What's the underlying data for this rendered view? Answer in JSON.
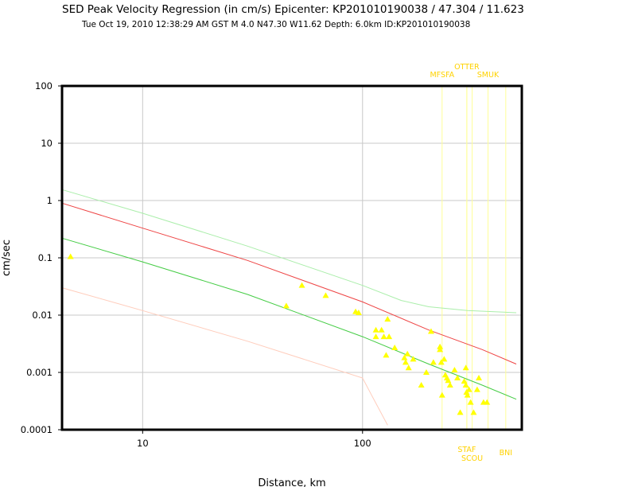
{
  "chart_data": {
    "type": "scatter",
    "title": "SED Peak Velocity Regression (in cm/s) Epicenter: KP201010190038 / 47.304 / 11.623",
    "subtitle": "Tue Oct 19, 2010 12:38:29 AM GST   M 4.0   N47.30 W11.62   Depth: 6.0km   ID:KP201010190038",
    "xlabel": "Distance, km",
    "ylabel": "cm/sec",
    "x_scale": "log",
    "y_scale": "log",
    "xlim": [
      4.3,
      530
    ],
    "ylim": [
      0.0001,
      100
    ],
    "x_ticks": [
      {
        "v": 10,
        "label": "10"
      },
      {
        "v": 100,
        "label": "100"
      }
    ],
    "y_ticks": [
      {
        "v": 100,
        "label": "100"
      },
      {
        "v": 10,
        "label": "10"
      },
      {
        "v": 1,
        "label": "1"
      },
      {
        "v": 0.1,
        "label": "0.1"
      },
      {
        "v": 0.01,
        "label": "0.01"
      },
      {
        "v": 0.001,
        "label": "0.001"
      },
      {
        "v": 0.0001,
        "label": "0.0001"
      }
    ],
    "grid": true,
    "series": [
      {
        "type": "points",
        "color": "#ffff00",
        "marker": "triangle",
        "points": [
          [
            4.7,
            0.105
          ],
          [
            45,
            0.0145
          ],
          [
            53,
            0.033
          ],
          [
            68,
            0.022
          ],
          [
            93,
            0.0115
          ],
          [
            96,
            0.011
          ],
          [
            115,
            0.0055
          ],
          [
            115,
            0.0042
          ],
          [
            122,
            0.0055
          ],
          [
            125,
            0.0042
          ],
          [
            130,
            0.0085
          ],
          [
            132,
            0.0042
          ],
          [
            128,
            0.002
          ],
          [
            140,
            0.0027
          ],
          [
            155,
            0.0018
          ],
          [
            157,
            0.0015
          ],
          [
            160,
            0.0021
          ],
          [
            162,
            0.0012
          ],
          [
            170,
            0.0017
          ],
          [
            185,
            0.0006
          ],
          [
            195,
            0.001
          ],
          [
            205,
            0.0052
          ],
          [
            210,
            0.0015
          ],
          [
            225,
            0.0028
          ],
          [
            225,
            0.0025
          ],
          [
            228,
            0.0015
          ],
          [
            230,
            0.0004
          ],
          [
            235,
            0.0017
          ],
          [
            238,
            0.0009
          ],
          [
            242,
            0.0008
          ],
          [
            245,
            0.00072
          ],
          [
            250,
            0.0006
          ],
          [
            262,
            0.0011
          ],
          [
            270,
            0.0008
          ],
          [
            278,
            0.0002
          ],
          [
            290,
            0.0007
          ],
          [
            295,
            0.0012
          ],
          [
            295,
            0.0006
          ],
          [
            297,
            0.00045
          ],
          [
            300,
            0.0004
          ],
          [
            305,
            0.0005
          ],
          [
            310,
            0.0003
          ],
          [
            320,
            0.0002
          ],
          [
            332,
            0.0005
          ],
          [
            338,
            0.0008
          ],
          [
            355,
            0.0003
          ],
          [
            368,
            0.0003
          ]
        ]
      },
      {
        "type": "line",
        "color": "#ee4444",
        "points": [
          [
            4.3,
            0.9
          ],
          [
            10,
            0.33
          ],
          [
            30,
            0.09
          ],
          [
            100,
            0.017
          ],
          [
            200,
            0.0055
          ],
          [
            350,
            0.0025
          ],
          [
            500,
            0.0014
          ]
        ]
      },
      {
        "type": "line",
        "color": "#44cc44",
        "points": [
          [
            4.3,
            0.22
          ],
          [
            10,
            0.085
          ],
          [
            30,
            0.023
          ],
          [
            100,
            0.0042
          ],
          [
            200,
            0.0014
          ],
          [
            350,
            0.0006
          ],
          [
            500,
            0.00034
          ]
        ]
      },
      {
        "type": "line",
        "color": "#aaeeaa",
        "points": [
          [
            4.3,
            1.55
          ],
          [
            10,
            0.6
          ],
          [
            30,
            0.16
          ],
          [
            100,
            0.033
          ],
          [
            150,
            0.018
          ],
          [
            200,
            0.014
          ],
          [
            300,
            0.012
          ],
          [
            500,
            0.011
          ]
        ]
      },
      {
        "type": "line",
        "color": "#ffccbb",
        "points": [
          [
            4.3,
            0.03
          ],
          [
            10,
            0.012
          ],
          [
            30,
            0.0035
          ],
          [
            100,
            0.0008
          ],
          [
            110,
            0.0004
          ],
          [
            130,
            0.00012
          ]
        ]
      }
    ],
    "station_markers": [
      {
        "name": "MFSFA",
        "x": 230,
        "position": "top"
      },
      {
        "name": "OTTER",
        "x": 298,
        "position": "top"
      },
      {
        "name": "SMUK",
        "x": 372,
        "position": "top"
      },
      {
        "name": "STAF",
        "x": 298,
        "position": "bottom"
      },
      {
        "name": "SCOU",
        "x": 315,
        "position": "bottom"
      },
      {
        "name": "BNI",
        "x": 448,
        "position": "bottom"
      }
    ],
    "station_marker_color": "#ffff99"
  }
}
